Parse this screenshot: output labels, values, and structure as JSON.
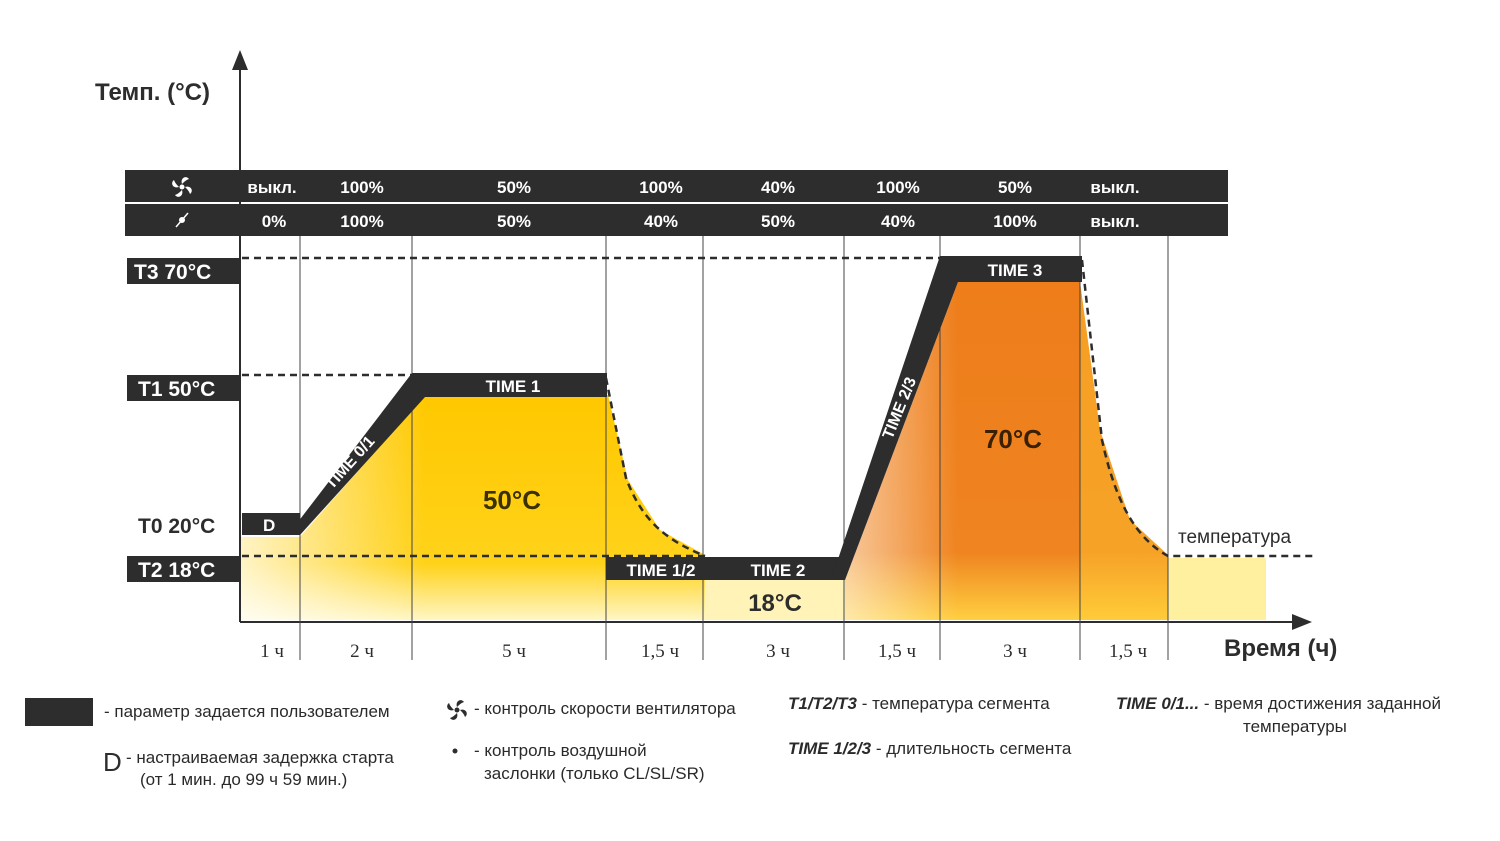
{
  "axes": {
    "y_label": "Темп. (°C)",
    "x_label": "Время (ч)"
  },
  "temperature_markers": [
    {
      "name": "T3",
      "label": "T3 70°C",
      "value": 70
    },
    {
      "name": "T1",
      "label": "T1 50°C",
      "value": 50
    },
    {
      "name": "T0",
      "label": "T0 20°C",
      "value": 20
    },
    {
      "name": "T2",
      "label": "T2 18°C",
      "value": 18
    }
  ],
  "control_table": {
    "fan_icon": "fan-icon",
    "damper_icon": "damper-icon",
    "fan_row": [
      "выкл.",
      "100%",
      "50%",
      "100%",
      "40%",
      "100%",
      "50%",
      "выкл."
    ],
    "damper_row": [
      "0%",
      "100%",
      "50%",
      "40%",
      "50%",
      "40%",
      "100%",
      "выкл."
    ]
  },
  "segments": [
    "1 ч",
    "2 ч",
    "5 ч",
    "1,5 ч",
    "3 ч",
    "1,5 ч",
    "3 ч",
    "1,5 ч"
  ],
  "profile_labels": {
    "delay": "D",
    "time01": "TIME 0/1",
    "time1": "TIME 1",
    "time12": "TIME 1/2",
    "time2": "TIME 2",
    "time23": "TIME 2/3",
    "time3": "TIME 3",
    "temp50": "50°C",
    "temp18": "18°C",
    "temp70": "70°C",
    "curve_label": "температура"
  },
  "colors": {
    "dark": "#2d2d2d",
    "yellow": "#ffc800",
    "orange": "#ee7d1a",
    "text_gold": "#3a3000"
  },
  "legend": {
    "user_param": "- параметр задается пользователем",
    "delay_letter": "D",
    "delay_line1": "- настраиваемая задержка старта",
    "delay_line2": "(от 1 мин. до 99 ч 59 мин.)",
    "fan_desc": "- контроль скорости вентилятора",
    "damper_desc_line1": "- контроль воздушной",
    "damper_desc_line2": "заслонки (только CL/SL/SR)",
    "t_key": "T1/T2/T3",
    "t_desc": " - температура сегмента",
    "time_seg_key": "TIME 1/2/3",
    "time_seg_desc": " - длительность сегмента",
    "time_reach_key": "TIME 0/1...",
    "time_reach_desc_line1": "-   время достижения заданной",
    "time_reach_desc_line2": "температуры"
  }
}
